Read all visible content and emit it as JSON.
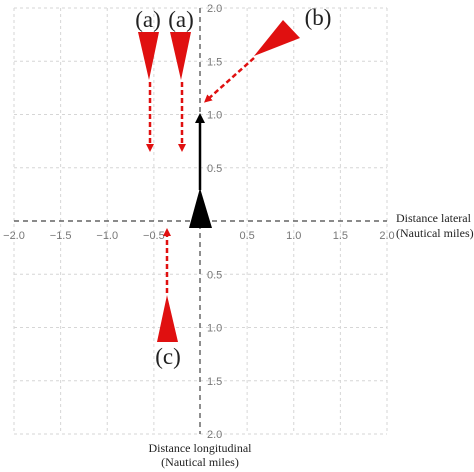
{
  "labels": {
    "a1": "(a)",
    "a2": "(a)",
    "b": "(b)",
    "c": "(c)"
  },
  "x_axis": {
    "title_line1": "Distance lateral",
    "title_line2": "(Nautical miles)",
    "ticks": [
      "−2.0",
      "−1.5",
      "−1.0",
      "−0.5",
      "0.5",
      "1.0",
      "1.5",
      "2.0"
    ]
  },
  "y_axis": {
    "title_line1": "Distance longitudinal",
    "title_line2": "(Nautical miles)",
    "ticks": [
      "2.0",
      "1.5",
      "1.0",
      "0.5",
      "0.5",
      "1.0",
      "1.5",
      "2.0"
    ]
  }
}
